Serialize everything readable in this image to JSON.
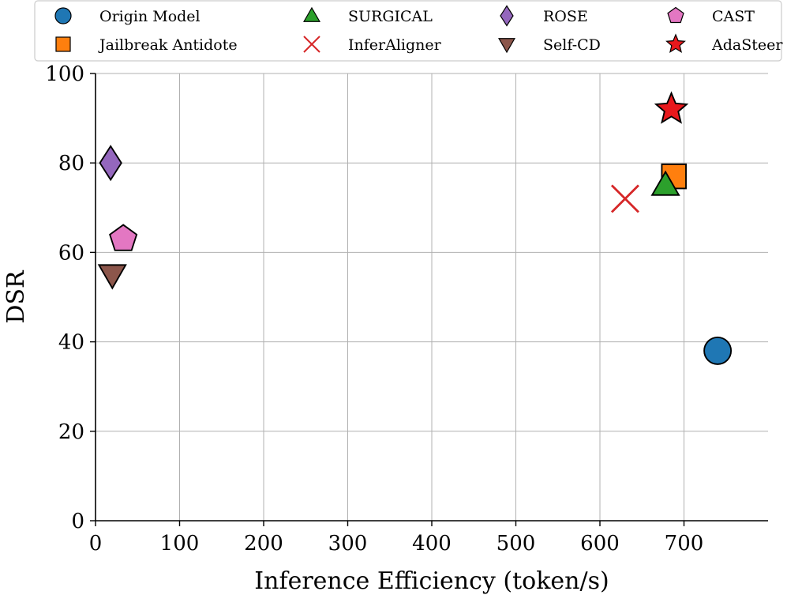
{
  "chart_data": {
    "type": "scatter",
    "title": "",
    "xlabel": "Inference Efficiency (token/s)",
    "ylabel": "DSR",
    "xlim": [
      0,
      800
    ],
    "ylim": [
      0,
      100
    ],
    "xticks": [
      0,
      100,
      200,
      300,
      400,
      500,
      600,
      700
    ],
    "yticks": [
      0,
      20,
      40,
      60,
      80,
      100
    ],
    "grid": true,
    "legend_position": "top",
    "series": [
      {
        "name": "Origin Model",
        "marker": "circle",
        "color": "#1f77b4",
        "x": 740,
        "y": 38
      },
      {
        "name": "Jailbreak Antidote",
        "marker": "square",
        "color": "#ff7f0e",
        "x": 688,
        "y": 77
      },
      {
        "name": "SURGICAL",
        "marker": "triangle-up",
        "color": "#2ca02c",
        "x": 678,
        "y": 75
      },
      {
        "name": "InferAligner",
        "marker": "x",
        "color": "#d62728",
        "x": 630,
        "y": 72
      },
      {
        "name": "ROSE",
        "marker": "diamond",
        "color": "#9467bd",
        "x": 18,
        "y": 80
      },
      {
        "name": "Self-CD",
        "marker": "triangle-down",
        "color": "#8c564b",
        "x": 20,
        "y": 55
      },
      {
        "name": "CAST",
        "marker": "pentagon",
        "color": "#e377c2",
        "x": 33,
        "y": 63
      },
      {
        "name": "AdaSteer",
        "marker": "star",
        "color": "#e8181c",
        "x": 685,
        "y": 92
      }
    ]
  }
}
